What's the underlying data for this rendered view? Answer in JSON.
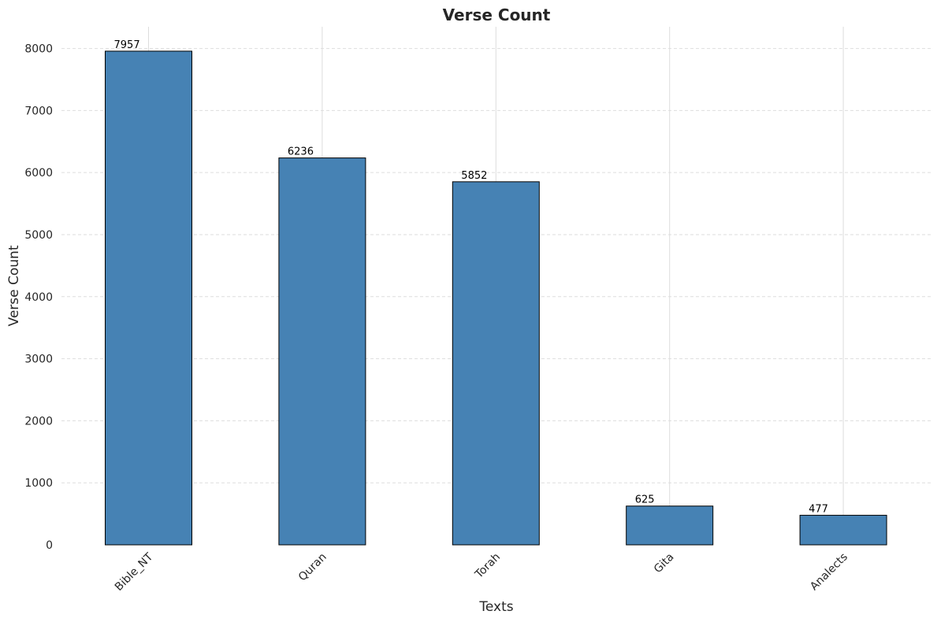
{
  "chart_data": {
    "type": "bar",
    "title": "Verse Count",
    "xlabel": "Texts",
    "ylabel": "Verse Count",
    "categories": [
      "Bible_NT",
      "Quran",
      "Torah",
      "Gita",
      "Analects"
    ],
    "values": [
      7957,
      6236,
      5852,
      625,
      477
    ],
    "data_labels": [
      "7957",
      "6236",
      "5852",
      "625",
      "477"
    ],
    "ylim": [
      0,
      8350
    ],
    "yticks": [
      0,
      1000,
      2000,
      3000,
      4000,
      5000,
      6000,
      7000,
      8000
    ],
    "ytick_labels": [
      "0",
      "1000",
      "2000",
      "3000",
      "4000",
      "5000",
      "6000",
      "7000",
      "8000"
    ],
    "grid": true,
    "bar_color": "#4682b4",
    "bar_edge_color": "#000000",
    "grid_color": "#dddddd"
  }
}
